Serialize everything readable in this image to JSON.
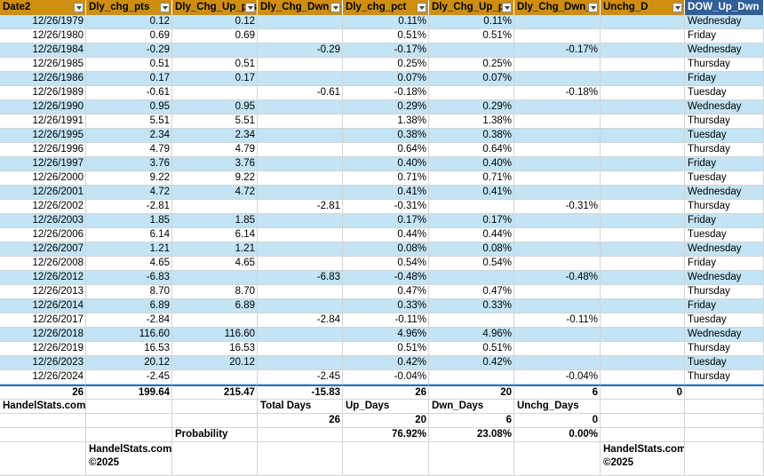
{
  "headers": [
    "Date2",
    "Dly_chg_pts",
    "Dly_Chg_Up_pts",
    "Dly_Chg_Dwn_p",
    "Dly_chg_pct",
    "Dly_Chg_Up_pc",
    "Dly_Chg_Dwn_p",
    "Unchg_D",
    "DOW_Up_Dwn"
  ],
  "rows": [
    [
      "12/26/1979",
      "0.12",
      "0.12",
      "",
      "0.11%",
      "0.11%",
      "",
      "",
      "Wednesday"
    ],
    [
      "12/26/1980",
      "0.69",
      "0.69",
      "",
      "0.51%",
      "0.51%",
      "",
      "",
      "Friday"
    ],
    [
      "12/26/1984",
      "-0.29",
      "",
      "-0.29",
      "-0.17%",
      "",
      "-0.17%",
      "",
      "Wednesday"
    ],
    [
      "12/26/1985",
      "0.51",
      "0.51",
      "",
      "0.25%",
      "0.25%",
      "",
      "",
      "Thursday"
    ],
    [
      "12/26/1986",
      "0.17",
      "0.17",
      "",
      "0.07%",
      "0.07%",
      "",
      "",
      "Friday"
    ],
    [
      "12/26/1989",
      "-0.61",
      "",
      "-0.61",
      "-0.18%",
      "",
      "-0.18%",
      "",
      "Tuesday"
    ],
    [
      "12/26/1990",
      "0.95",
      "0.95",
      "",
      "0.29%",
      "0.29%",
      "",
      "",
      "Wednesday"
    ],
    [
      "12/26/1991",
      "5.51",
      "5.51",
      "",
      "1.38%",
      "1.38%",
      "",
      "",
      "Thursday"
    ],
    [
      "12/26/1995",
      "2.34",
      "2.34",
      "",
      "0.38%",
      "0.38%",
      "",
      "",
      "Tuesday"
    ],
    [
      "12/26/1996",
      "4.79",
      "4.79",
      "",
      "0.64%",
      "0.64%",
      "",
      "",
      "Thursday"
    ],
    [
      "12/26/1997",
      "3.76",
      "3.76",
      "",
      "0.40%",
      "0.40%",
      "",
      "",
      "Friday"
    ],
    [
      "12/26/2000",
      "9.22",
      "9.22",
      "",
      "0.71%",
      "0.71%",
      "",
      "",
      "Tuesday"
    ],
    [
      "12/26/2001",
      "4.72",
      "4.72",
      "",
      "0.41%",
      "0.41%",
      "",
      "",
      "Wednesday"
    ],
    [
      "12/26/2002",
      "-2.81",
      "",
      "-2.81",
      "-0.31%",
      "",
      "-0.31%",
      "",
      "Thursday"
    ],
    [
      "12/26/2003",
      "1.85",
      "1.85",
      "",
      "0.17%",
      "0.17%",
      "",
      "",
      "Friday"
    ],
    [
      "12/26/2006",
      "6.14",
      "6.14",
      "",
      "0.44%",
      "0.44%",
      "",
      "",
      "Tuesday"
    ],
    [
      "12/26/2007",
      "1.21",
      "1.21",
      "",
      "0.08%",
      "0.08%",
      "",
      "",
      "Wednesday"
    ],
    [
      "12/26/2008",
      "4.65",
      "4.65",
      "",
      "0.54%",
      "0.54%",
      "",
      "",
      "Friday"
    ],
    [
      "12/26/2012",
      "-6.83",
      "",
      "-6.83",
      "-0.48%",
      "",
      "-0.48%",
      "",
      "Wednesday"
    ],
    [
      "12/26/2013",
      "8.70",
      "8.70",
      "",
      "0.47%",
      "0.47%",
      "",
      "",
      "Thursday"
    ],
    [
      "12/26/2014",
      "6.89",
      "6.89",
      "",
      "0.33%",
      "0.33%",
      "",
      "",
      "Friday"
    ],
    [
      "12/26/2017",
      "-2.84",
      "",
      "-2.84",
      "-0.11%",
      "",
      "-0.11%",
      "",
      "Tuesday"
    ],
    [
      "12/26/2018",
      "116.60",
      "116.60",
      "",
      "4.96%",
      "4.96%",
      "",
      "",
      "Wednesday"
    ],
    [
      "12/26/2019",
      "16.53",
      "16.53",
      "",
      "0.51%",
      "0.51%",
      "",
      "",
      "Thursday"
    ],
    [
      "12/26/2023",
      "20.12",
      "20.12",
      "",
      "0.42%",
      "0.42%",
      "",
      "",
      "Tuesday"
    ],
    [
      "12/26/2024",
      "-2.45",
      "",
      "-2.45",
      "-0.04%",
      "",
      "-0.04%",
      "",
      "Thursday"
    ]
  ],
  "totals": [
    "26",
    "199.64",
    "215.47",
    "-15.83",
    "26",
    "20",
    "6",
    "0",
    ""
  ],
  "summary": {
    "site": "HandelStats.com",
    "labels": [
      "Total Days",
      "Up_Days",
      "Dwn_Days",
      "Unchg_Days"
    ],
    "counts": [
      "26",
      "20",
      "6",
      "0"
    ],
    "probability_label": "Probability",
    "probabilities": [
      "76.92%",
      "23.08%",
      "0.00%"
    ],
    "footer_left": [
      "HandelStats.com",
      "©2025"
    ],
    "footer_right": [
      "HandelStats.com",
      "©2025"
    ]
  }
}
